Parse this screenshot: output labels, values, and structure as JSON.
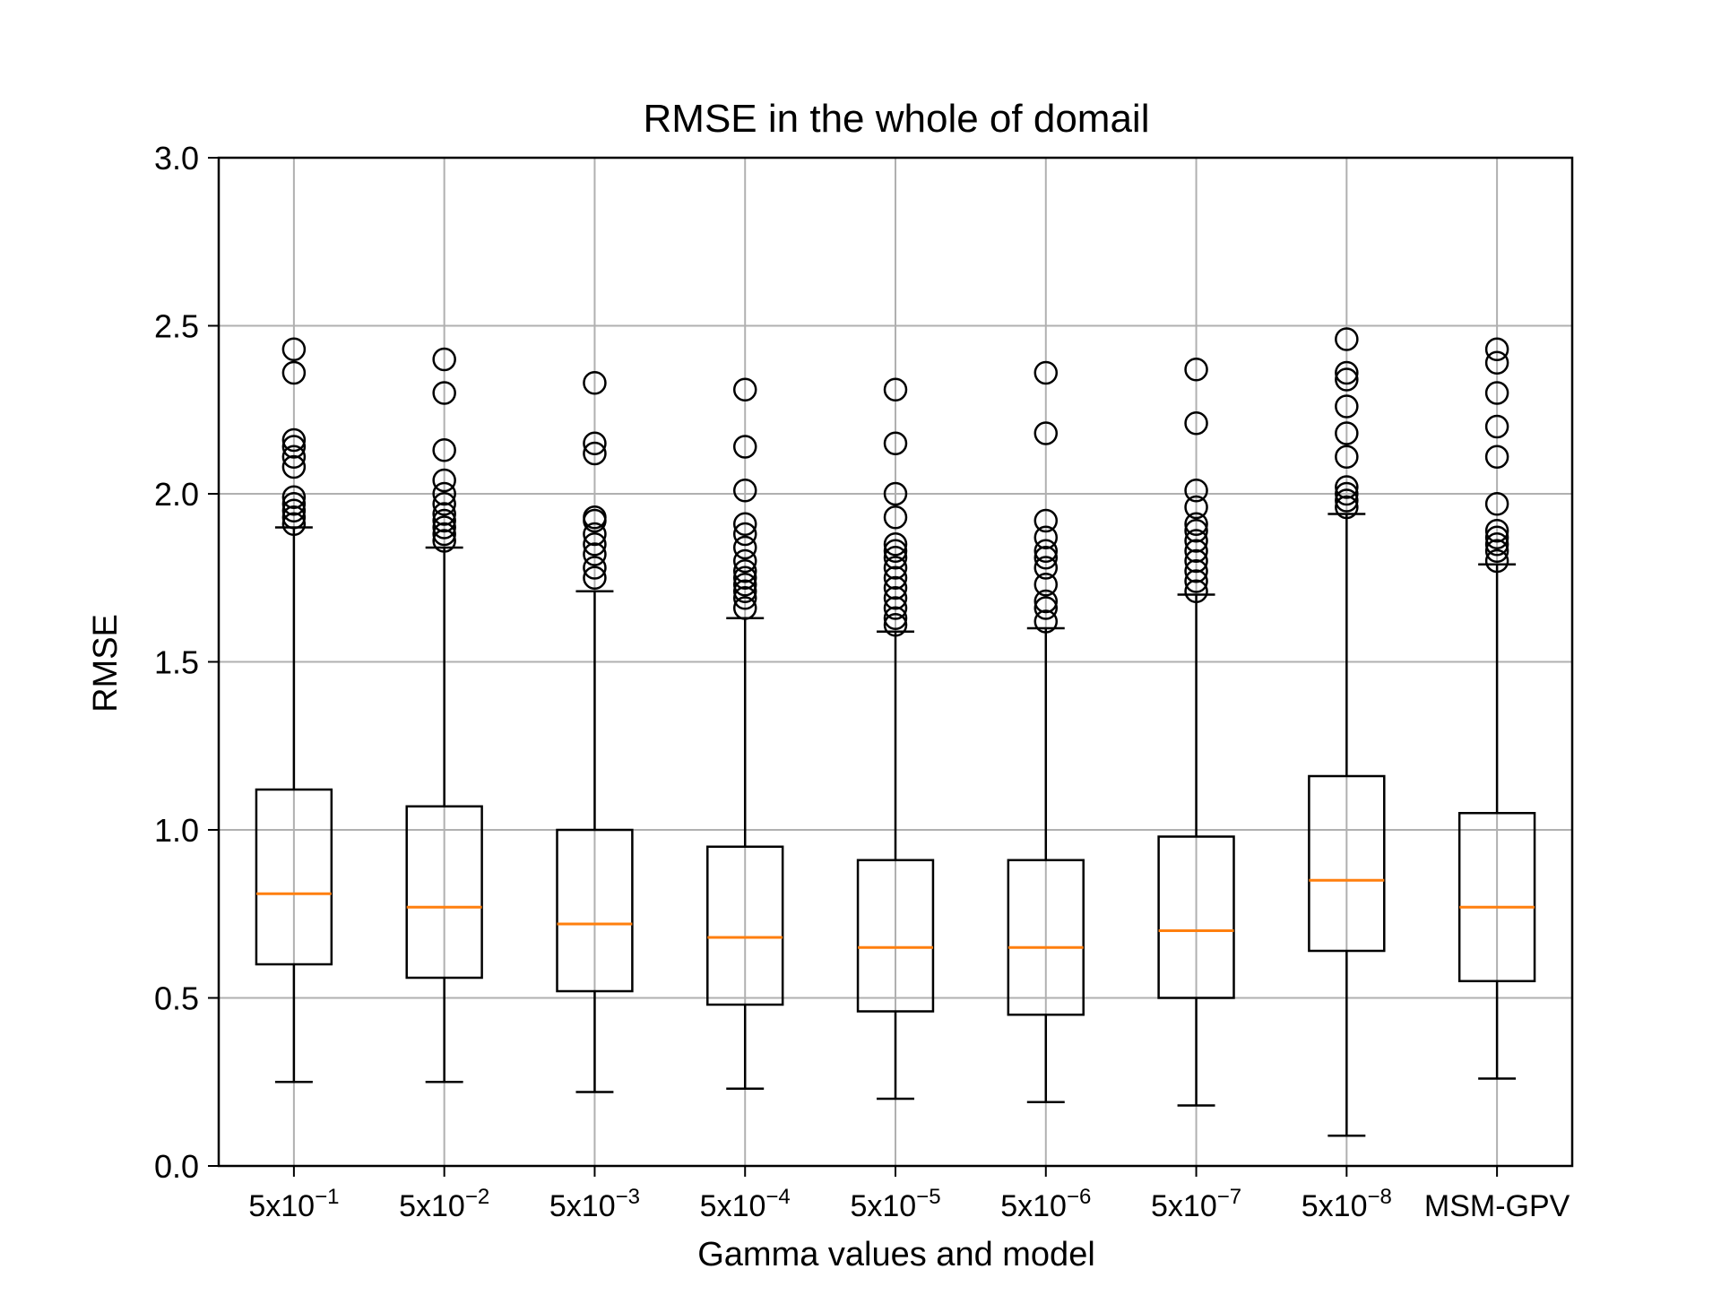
{
  "chart_data": {
    "type": "boxplot",
    "title": "RMSE in the whole of domail",
    "xlabel": "Gamma values and model",
    "ylabel": "RMSE",
    "ylim": [
      0.0,
      3.0
    ],
    "yticks": [
      "0.0",
      "0.5",
      "1.0",
      "1.5",
      "2.0",
      "2.5",
      "3.0"
    ],
    "grid": true,
    "colors": {
      "box": "#000000",
      "median": "#ff7f0e",
      "grid": "#b0b0b0"
    },
    "categories": [
      {
        "base": "5x10",
        "exp": "−1"
      },
      {
        "base": "5x10",
        "exp": "−2"
      },
      {
        "base": "5x10",
        "exp": "−3"
      },
      {
        "base": "5x10",
        "exp": "−4"
      },
      {
        "base": "5x10",
        "exp": "−5"
      },
      {
        "base": "5x10",
        "exp": "−6"
      },
      {
        "base": "5x10",
        "exp": "−7"
      },
      {
        "base": "5x10",
        "exp": "−8"
      },
      {
        "base": "MSM-GPV",
        "exp": ""
      }
    ],
    "boxes": [
      {
        "whislo": 0.25,
        "q1": 0.6,
        "med": 0.81,
        "q3": 1.12,
        "whishi": 1.9,
        "fliers": [
          1.91,
          1.93,
          1.95,
          1.97,
          1.99,
          2.08,
          2.11,
          2.14,
          2.16,
          2.36,
          2.43
        ]
      },
      {
        "whislo": 0.25,
        "q1": 0.56,
        "med": 0.77,
        "q3": 1.07,
        "whishi": 1.84,
        "fliers": [
          1.86,
          1.88,
          1.9,
          1.92,
          1.94,
          1.97,
          2.0,
          2.04,
          2.13,
          2.3,
          2.4
        ]
      },
      {
        "whislo": 0.22,
        "q1": 0.52,
        "med": 0.72,
        "q3": 1.0,
        "whishi": 1.71,
        "fliers": [
          1.75,
          1.78,
          1.82,
          1.85,
          1.88,
          1.92,
          1.93,
          2.12,
          2.15,
          2.33
        ]
      },
      {
        "whislo": 0.23,
        "q1": 0.48,
        "med": 0.68,
        "q3": 0.95,
        "whishi": 1.63,
        "fliers": [
          1.66,
          1.69,
          1.71,
          1.73,
          1.75,
          1.77,
          1.8,
          1.84,
          1.88,
          1.91,
          2.01,
          2.14,
          2.31
        ]
      },
      {
        "whislo": 0.2,
        "q1": 0.46,
        "med": 0.65,
        "q3": 0.91,
        "whishi": 1.59,
        "fliers": [
          1.61,
          1.63,
          1.66,
          1.69,
          1.72,
          1.75,
          1.78,
          1.81,
          1.83,
          1.85,
          1.93,
          2.0,
          2.15,
          2.31
        ]
      },
      {
        "whislo": 0.19,
        "q1": 0.45,
        "med": 0.65,
        "q3": 0.91,
        "whishi": 1.6,
        "fliers": [
          1.62,
          1.66,
          1.68,
          1.73,
          1.78,
          1.81,
          1.83,
          1.87,
          1.92,
          2.18,
          2.36
        ]
      },
      {
        "whislo": 0.18,
        "q1": 0.5,
        "med": 0.7,
        "q3": 0.98,
        "whishi": 1.7,
        "fliers": [
          1.71,
          1.74,
          1.77,
          1.8,
          1.83,
          1.86,
          1.89,
          1.91,
          1.96,
          2.01,
          2.21,
          2.37
        ]
      },
      {
        "whislo": 0.09,
        "q1": 0.64,
        "med": 0.85,
        "q3": 1.16,
        "whishi": 1.94,
        "fliers": [
          1.96,
          1.98,
          2.0,
          2.02,
          2.11,
          2.18,
          2.26,
          2.34,
          2.36,
          2.46
        ]
      },
      {
        "whislo": 0.26,
        "q1": 0.55,
        "med": 0.77,
        "q3": 1.05,
        "whishi": 1.79,
        "fliers": [
          1.8,
          1.83,
          1.85,
          1.87,
          1.89,
          1.97,
          2.11,
          2.2,
          2.3,
          2.39,
          2.43
        ]
      }
    ]
  }
}
